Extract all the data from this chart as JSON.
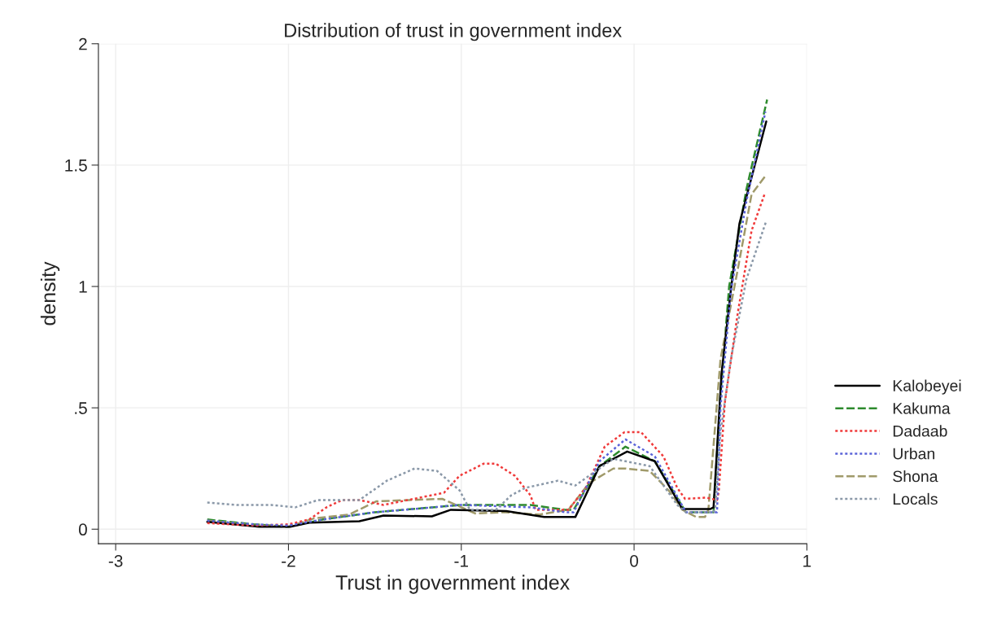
{
  "chart_data": {
    "type": "line",
    "title": "Distribution of trust in government index",
    "xlabel": "Trust in government index",
    "ylabel": "density",
    "xlim": [
      -3.1,
      1
    ],
    "ylim": [
      -0.06,
      2
    ],
    "xticks": [
      -3,
      -2,
      -1,
      0,
      1
    ],
    "yticks": [
      {
        "value": 0,
        "label": "0"
      },
      {
        "value": 0.5,
        "label": ".5"
      },
      {
        "value": 1,
        "label": "1"
      },
      {
        "value": 1.5,
        "label": "1.5"
      },
      {
        "value": 2,
        "label": "2"
      }
    ],
    "grid": true,
    "legend": "right",
    "marker": "none",
    "series": [
      {
        "name": "Kalobeyei",
        "color": "#000000",
        "line_style": "solid",
        "x": [
          -2.47,
          -2.17,
          -1.99,
          -1.88,
          -1.59,
          -1.45,
          -1.17,
          -1.06,
          -0.74,
          -0.52,
          -0.36,
          -0.34,
          -0.2,
          -0.04,
          0.12,
          0.28,
          0.44,
          0.46,
          0.506,
          0.56,
          0.61,
          0.765
        ],
        "values": [
          0.03,
          0.01,
          0.01,
          0.027,
          0.033,
          0.056,
          0.053,
          0.08,
          0.075,
          0.05,
          0.05,
          0.05,
          0.26,
          0.32,
          0.28,
          0.083,
          0.083,
          0.09,
          0.64,
          0.985,
          1.26,
          1.68
        ]
      },
      {
        "name": "Kakuma",
        "color": "#2e8b2e",
        "line_style": "dashed",
        "x": [
          -2.47,
          -2.2,
          -2.0,
          -1.8,
          -1.5,
          -1.0,
          -0.6,
          -0.4,
          -0.35,
          -0.2,
          -0.05,
          0.12,
          0.3,
          0.46,
          0.5,
          0.55,
          0.65,
          0.77
        ],
        "values": [
          0.04,
          0.02,
          0.01,
          0.04,
          0.07,
          0.1,
          0.1,
          0.08,
          0.08,
          0.26,
          0.34,
          0.28,
          0.07,
          0.07,
          0.55,
          1.0,
          1.4,
          1.77
        ]
      },
      {
        "name": "Dadaab",
        "color": "#f03a3a",
        "line_style": "dotted",
        "x": [
          -2.47,
          -2.2,
          -2.0,
          -1.88,
          -1.78,
          -1.69,
          -1.59,
          -1.45,
          -1.1,
          -1.01,
          -0.87,
          -0.8,
          -0.69,
          -0.6,
          -0.57,
          -0.38,
          -0.28,
          -0.17,
          -0.055,
          0.04,
          0.17,
          0.25,
          0.295,
          0.42,
          0.48,
          0.49,
          0.525,
          0.6,
          0.68,
          0.755
        ],
        "values": [
          0.025,
          0.015,
          0.02,
          0.04,
          0.09,
          0.12,
          0.12,
          0.1,
          0.15,
          0.22,
          0.27,
          0.27,
          0.22,
          0.14,
          0.08,
          0.08,
          0.17,
          0.34,
          0.4,
          0.4,
          0.3,
          0.17,
          0.125,
          0.13,
          0.12,
          0.155,
          0.52,
          0.89,
          1.23,
          1.38
        ]
      },
      {
        "name": "Urban",
        "color": "#5a63d8",
        "line_style": "dotted",
        "x": [
          -2.47,
          -2.2,
          -2.0,
          -1.8,
          -1.5,
          -1.0,
          -0.6,
          -0.4,
          -0.35,
          -0.2,
          -0.05,
          0.12,
          0.3,
          0.48,
          0.5,
          0.56,
          0.65,
          0.76
        ],
        "values": [
          0.035,
          0.02,
          0.015,
          0.04,
          0.07,
          0.1,
          0.09,
          0.07,
          0.07,
          0.28,
          0.37,
          0.3,
          0.07,
          0.07,
          0.5,
          0.98,
          1.35,
          1.72
        ]
      },
      {
        "name": "Shona",
        "color": "#a09a6a",
        "line_style": "dashed",
        "x": [
          -2.47,
          -2.2,
          -2.0,
          -1.85,
          -1.65,
          -1.49,
          -1.3,
          -1.11,
          -0.92,
          -0.74,
          -0.55,
          -0.38,
          -0.26,
          -0.12,
          -0.05,
          0.09,
          0.2,
          0.28,
          0.36,
          0.41,
          0.43,
          0.5,
          0.6,
          0.68,
          0.765
        ],
        "values": [
          0.035,
          0.015,
          0.01,
          0.045,
          0.06,
          0.115,
          0.12,
          0.125,
          0.065,
          0.07,
          0.06,
          0.08,
          0.19,
          0.25,
          0.25,
          0.24,
          0.16,
          0.08,
          0.05,
          0.05,
          0.08,
          0.7,
          1.07,
          1.38,
          1.46
        ]
      },
      {
        "name": "Locals",
        "color": "#8a98a8",
        "line_style": "dotted",
        "x": [
          -2.47,
          -2.3,
          -2.1,
          -1.96,
          -1.83,
          -1.59,
          -1.43,
          -1.27,
          -1.14,
          -1.01,
          -0.95,
          -0.8,
          -0.71,
          -0.63,
          -0.44,
          -0.34,
          -0.12,
          0.09,
          0.25,
          0.3,
          0.46,
          0.47,
          0.5,
          0.56,
          0.65,
          0.765
        ],
        "values": [
          0.11,
          0.1,
          0.1,
          0.09,
          0.12,
          0.12,
          0.2,
          0.25,
          0.24,
          0.16,
          0.08,
          0.08,
          0.14,
          0.17,
          0.2,
          0.18,
          0.29,
          0.26,
          0.1,
          0.07,
          0.07,
          0.09,
          0.4,
          0.7,
          1.03,
          1.27
        ]
      }
    ]
  }
}
